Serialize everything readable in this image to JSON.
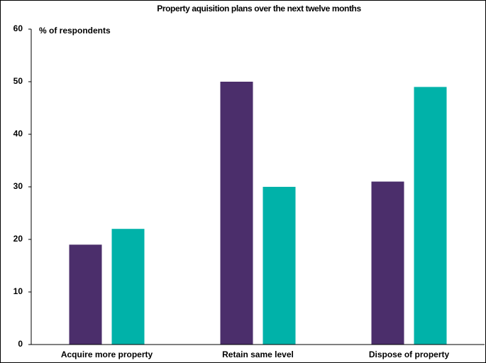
{
  "chart_data": {
    "type": "bar",
    "title": "Property aquisition plans over the next twelve months",
    "y_label": "% of respondents",
    "categories": [
      "Acquire more property",
      "Retain same level",
      "Dispose of property"
    ],
    "series": [
      {
        "color": "#4b2e6b",
        "values": [
          19,
          50,
          31
        ]
      },
      {
        "color": "#00b2a9",
        "values": [
          22,
          30,
          49
        ]
      }
    ],
    "ylim": [
      0,
      60
    ],
    "yticks": [
      0,
      10,
      20,
      30,
      40,
      50,
      60
    ],
    "grid": false
  }
}
